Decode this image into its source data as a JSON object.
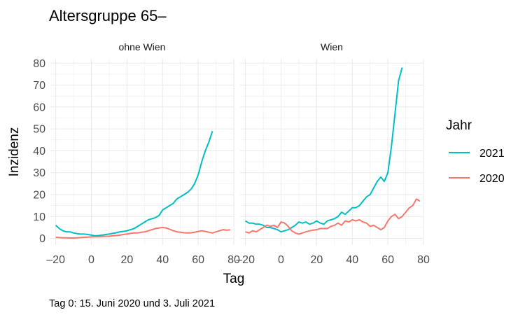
{
  "chart_data": {
    "type": "line",
    "title": "Altersgruppe 65–",
    "caption": "Tag 0: 15. Juni 2020 und 3. Juli 2021",
    "xlabel": "Tag",
    "ylabel": "Inzidenz",
    "xlim": [
      -23,
      80
    ],
    "ylim": [
      -3,
      82
    ],
    "x_ticks": [
      -20,
      0,
      20,
      40,
      60,
      80
    ],
    "x_tick_labels": [
      "–20",
      "0",
      "20",
      "40",
      "60",
      "80"
    ],
    "y_ticks": [
      0,
      10,
      20,
      30,
      40,
      50,
      60,
      70,
      80
    ],
    "y_tick_labels": [
      "0",
      "10",
      "20",
      "30",
      "40",
      "50",
      "60",
      "70",
      "80"
    ],
    "grid": true,
    "legend": {
      "title": "Jahr",
      "position": "right"
    },
    "series_style": [
      {
        "name": "2021",
        "color": "#00BFC4"
      },
      {
        "name": "2020",
        "color": "#F8766D"
      }
    ],
    "panels": [
      {
        "label": "ohne Wien",
        "series": [
          {
            "name": "2021",
            "x": [
              -20,
              -18,
              -16,
              -14,
              -12,
              -10,
              -8,
              -6,
              -4,
              -2,
              0,
              2,
              4,
              6,
              8,
              10,
              12,
              14,
              16,
              18,
              20,
              22,
              24,
              26,
              28,
              30,
              32,
              34,
              36,
              38,
              40,
              42,
              44,
              46,
              48,
              50,
              52,
              54,
              56,
              58,
              60,
              62,
              64,
              66,
              68
            ],
            "y": [
              6,
              4.5,
              3.5,
              3,
              3,
              2.5,
              2.2,
              2,
              2,
              1.8,
              1.5,
              1.2,
              1.3,
              1.5,
              1.8,
              2,
              2.3,
              2.6,
              3,
              3.2,
              3.5,
              4,
              4.5,
              5.5,
              6.5,
              7.5,
              8.5,
              9,
              9.5,
              10.5,
              13,
              14,
              15,
              16,
              18,
              19,
              20,
              21,
              22.5,
              25,
              29,
              35,
              40,
              44,
              49
            ]
          },
          {
            "name": "2020",
            "x": [
              -20,
              -18,
              -16,
              -14,
              -12,
              -10,
              -8,
              -6,
              -4,
              -2,
              0,
              2,
              4,
              6,
              8,
              10,
              12,
              14,
              16,
              18,
              20,
              22,
              24,
              26,
              28,
              30,
              32,
              34,
              36,
              38,
              40,
              42,
              44,
              46,
              48,
              50,
              52,
              54,
              56,
              58,
              60,
              62,
              64,
              66,
              68,
              70,
              72,
              74,
              76,
              78
            ],
            "y": [
              0.5,
              0.4,
              0.3,
              0.3,
              0.2,
              0.2,
              0.3,
              0.4,
              0.5,
              0.6,
              0.7,
              0.8,
              0.8,
              0.9,
              1,
              1,
              1.2,
              1.3,
              1.5,
              1.8,
              2,
              2.3,
              2.5,
              2.5,
              2.8,
              3,
              3.5,
              4,
              4.5,
              4.8,
              5,
              4.8,
              4.2,
              3.5,
              3,
              2.8,
              2.6,
              2.5,
              2.6,
              2.8,
              3.2,
              3.5,
              3.2,
              2.8,
              2.5,
              3,
              3.5,
              4,
              3.8,
              3.9
            ]
          }
        ]
      },
      {
        "label": "Wien",
        "series": [
          {
            "name": "2021",
            "x": [
              -20,
              -18,
              -16,
              -14,
              -12,
              -10,
              -8,
              -6,
              -4,
              -2,
              0,
              2,
              4,
              6,
              8,
              10,
              12,
              14,
              16,
              18,
              20,
              22,
              24,
              26,
              28,
              30,
              32,
              34,
              36,
              38,
              40,
              42,
              44,
              46,
              48,
              50,
              52,
              54,
              56,
              58,
              60,
              62,
              64,
              66,
              68
            ],
            "y": [
              8,
              7,
              7,
              6.5,
              6.5,
              6,
              5,
              5,
              4.5,
              4,
              3,
              3.5,
              4,
              5,
              6,
              7.5,
              7,
              7.5,
              6.5,
              7,
              8,
              7,
              6.5,
              8,
              8.5,
              9,
              10,
              12,
              11,
              12.5,
              14,
              14,
              15,
              17,
              19,
              20,
              23,
              26,
              28,
              26,
              30,
              42,
              57,
              72,
              78
            ]
          },
          {
            "name": "2020",
            "x": [
              -20,
              -18,
              -16,
              -14,
              -12,
              -10,
              -8,
              -6,
              -4,
              -2,
              0,
              2,
              4,
              6,
              8,
              10,
              12,
              14,
              16,
              18,
              20,
              22,
              24,
              26,
              28,
              30,
              32,
              34,
              36,
              38,
              40,
              42,
              44,
              46,
              48,
              50,
              52,
              54,
              56,
              58,
              60,
              62,
              64,
              66,
              68,
              70,
              72,
              74,
              76,
              78
            ],
            "y": [
              3,
              2.5,
              3.5,
              3,
              4,
              5,
              6,
              5.5,
              6,
              5,
              7.5,
              7,
              5.5,
              3.5,
              2.5,
              2,
              2.5,
              3,
              3.5,
              3.8,
              4,
              4.5,
              4.5,
              4.5,
              5.5,
              6,
              7,
              6,
              8,
              7.5,
              8.5,
              8,
              8.5,
              7.5,
              7,
              5.5,
              6,
              5,
              4,
              5,
              8,
              10,
              11,
              9,
              10,
              12,
              14,
              15,
              18,
              17
            ]
          }
        ]
      }
    ]
  }
}
